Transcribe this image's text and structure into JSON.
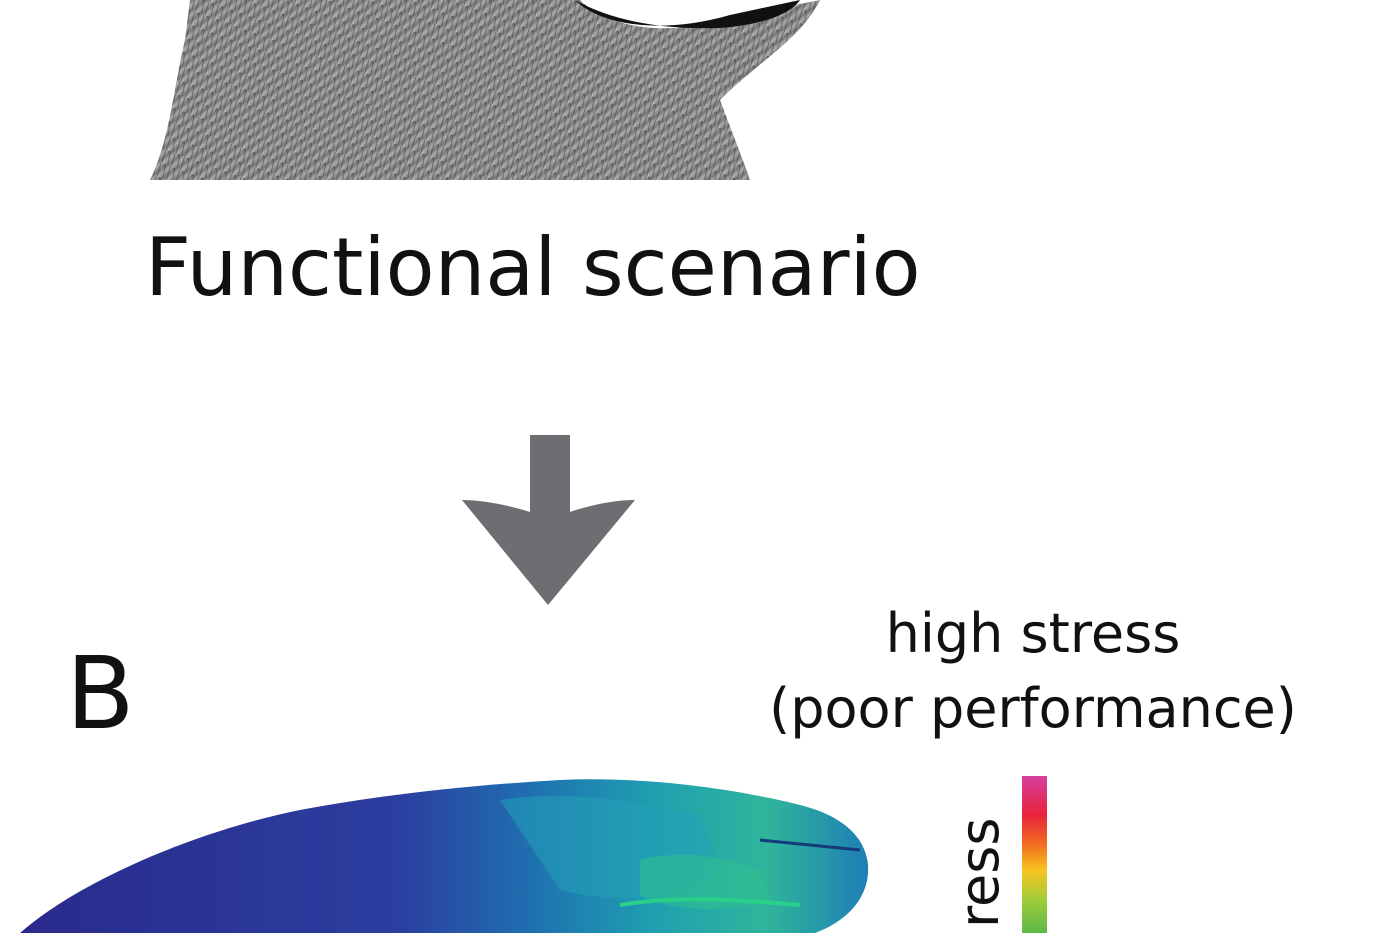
{
  "caption": "Functional scenario",
  "panel_label": "B",
  "legend": {
    "high_label": "high stress",
    "high_note": "(poor performance)",
    "axis_label": "ress"
  }
}
